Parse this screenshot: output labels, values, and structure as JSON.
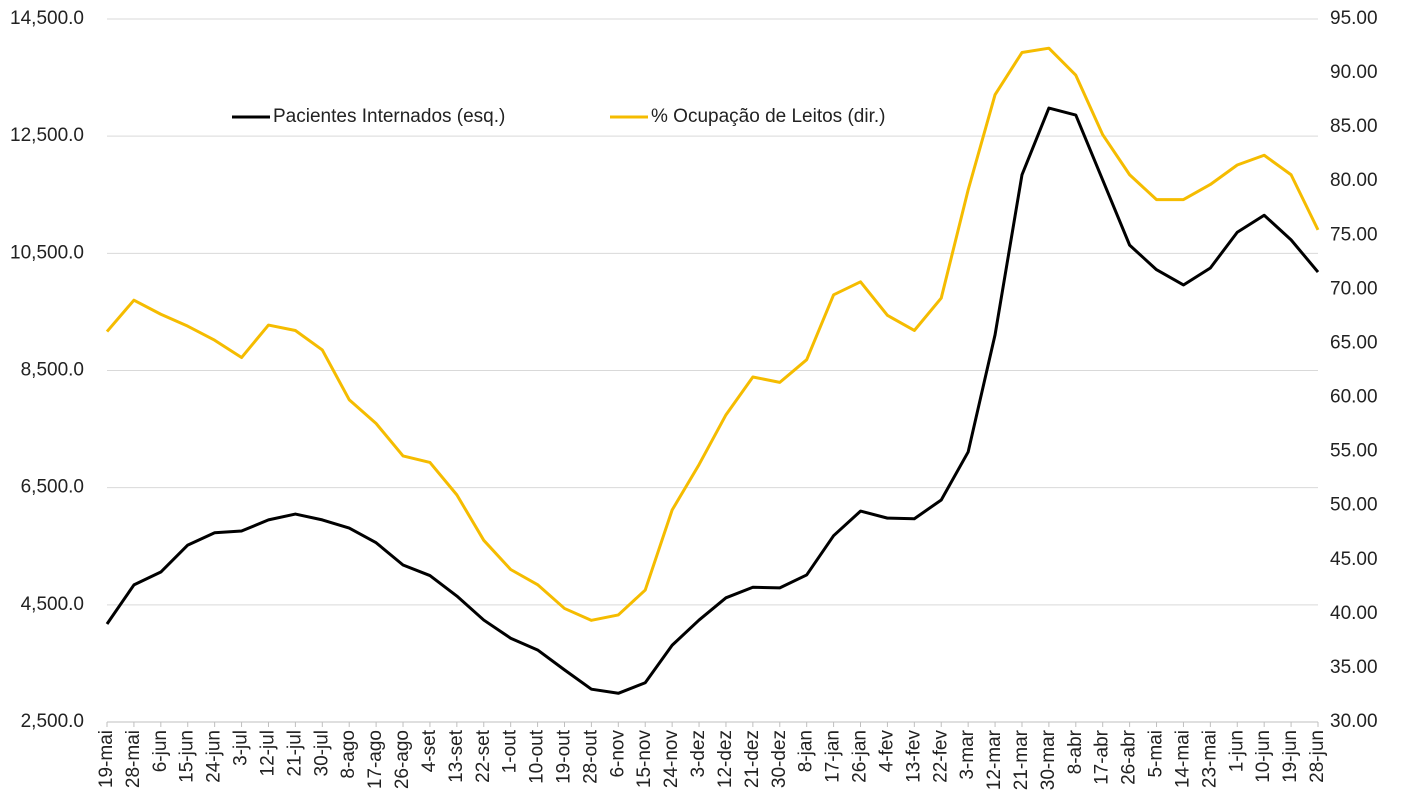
{
  "chart_data": {
    "type": "line",
    "categories": [
      "19-mai",
      "28-mai",
      "6-jun",
      "15-jun",
      "24-jun",
      "3-jul",
      "12-jul",
      "21-jul",
      "30-jul",
      "8-ago",
      "17-ago",
      "26-ago",
      "4-set",
      "13-set",
      "22-set",
      "1-out",
      "10-out",
      "19-out",
      "28-out",
      "6-nov",
      "15-nov",
      "24-nov",
      "3-dez",
      "12-dez",
      "21-dez",
      "30-dez",
      "8-jan",
      "17-jan",
      "26-jan",
      "4-fev",
      "13-fev",
      "22-fev",
      "3-mar",
      "12-mar",
      "21-mar",
      "30-mar",
      "8-abr",
      "17-abr",
      "26-abr",
      "5-mai",
      "14-mai",
      "23-mai",
      "1-jun",
      "10-jun",
      "19-jun",
      "28-jun"
    ],
    "series": [
      {
        "name": "Pacientes Internados (esq.)",
        "color": "#000000",
        "axis": "y",
        "values": [
          4173,
          4840,
          5060,
          5520,
          5730,
          5760,
          5950,
          6050,
          5950,
          5810,
          5560,
          5180,
          5000,
          4650,
          4240,
          3930,
          3730,
          3390,
          3060,
          2990,
          3170,
          3810,
          4240,
          4620,
          4800,
          4790,
          5010,
          5680,
          6100,
          5980,
          5970,
          6290,
          7110,
          9110,
          11840,
          12980,
          12860,
          11750,
          10640,
          10220,
          9960,
          10250,
          10860,
          11150,
          10730,
          10180
        ]
      },
      {
        "name": "% Ocupação de Leitos (dir.)",
        "color": "#f5bc00",
        "axis": "y2",
        "values": [
          66.1,
          69.0,
          67.7,
          66.6,
          65.3,
          63.7,
          66.7,
          66.2,
          64.4,
          59.8,
          57.6,
          54.6,
          54.0,
          51.0,
          46.8,
          44.1,
          42.7,
          40.5,
          39.4,
          39.9,
          42.2,
          49.6,
          53.8,
          58.4,
          61.9,
          61.4,
          63.5,
          69.5,
          70.7,
          67.6,
          66.2,
          69.2,
          79.2,
          88.0,
          91.9,
          92.3,
          89.8,
          84.3,
          80.6,
          78.3,
          78.3,
          79.7,
          81.5,
          82.4,
          80.6,
          75.5
        ]
      }
    ],
    "ylim": [
      2500,
      14500
    ],
    "yticks": [
      {
        "value": 2500,
        "label": "2,500.0"
      },
      {
        "value": 4500,
        "label": "4,500.0"
      },
      {
        "value": 6500,
        "label": "6,500.0"
      },
      {
        "value": 8500,
        "label": "8,500.0"
      },
      {
        "value": 10500,
        "label": "10,500.0"
      },
      {
        "value": 12500,
        "label": "12,500.0"
      },
      {
        "value": 14500,
        "label": "14,500.0"
      }
    ],
    "y2lim": [
      30,
      95
    ],
    "y2ticks": [
      {
        "value": 30,
        "label": "30.00"
      },
      {
        "value": 35,
        "label": "35.00"
      },
      {
        "value": 40,
        "label": "40.00"
      },
      {
        "value": 45,
        "label": "45.00"
      },
      {
        "value": 50,
        "label": "50.00"
      },
      {
        "value": 55,
        "label": "55.00"
      },
      {
        "value": 60,
        "label": "60.00"
      },
      {
        "value": 65,
        "label": "65.00"
      },
      {
        "value": 70,
        "label": "70.00"
      },
      {
        "value": 75,
        "label": "75.00"
      },
      {
        "value": 80,
        "label": "80.00"
      },
      {
        "value": 85,
        "label": "85.00"
      },
      {
        "value": 90,
        "label": "90.00"
      },
      {
        "value": 95,
        "label": "95.00"
      }
    ],
    "grid": true
  }
}
